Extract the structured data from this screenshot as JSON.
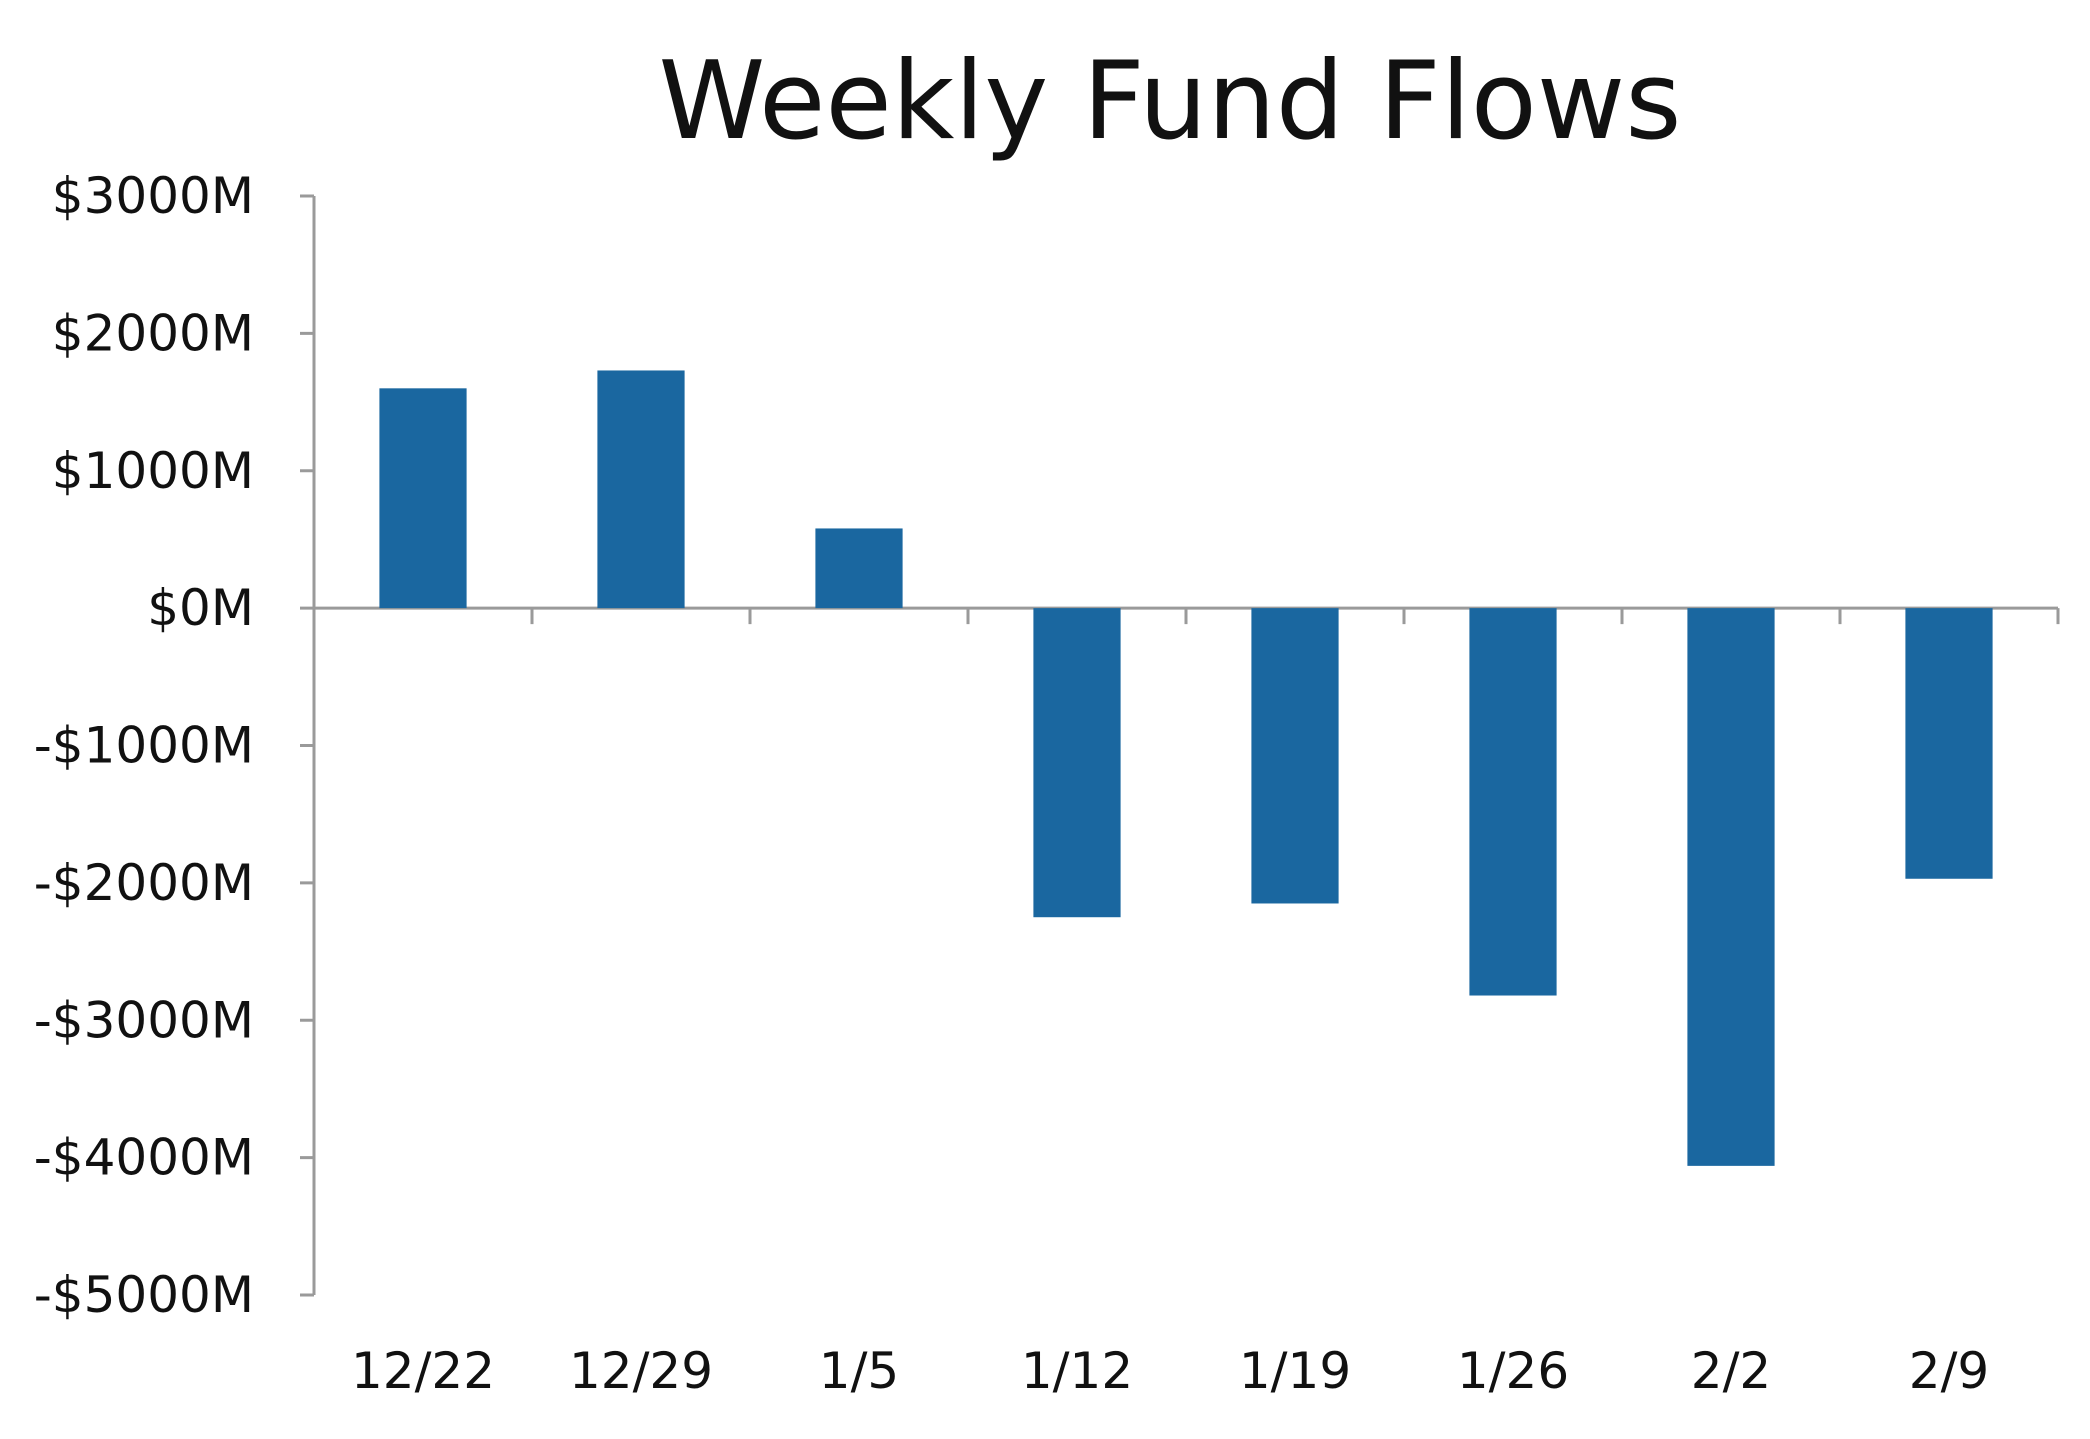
{
  "chart_data": {
    "type": "bar",
    "title": "Weekly Fund Flows",
    "xlabel": "",
    "ylabel": "",
    "categories": [
      "12/22",
      "12/29",
      "1/5",
      "1/12",
      "1/19",
      "1/26",
      "2/2",
      "2/9"
    ],
    "values": [
      1600,
      1730,
      580,
      -2250,
      -2150,
      -2820,
      -4060,
      -1970
    ],
    "ylim": [
      -5000,
      3000
    ],
    "yticks": [
      3000,
      2000,
      1000,
      0,
      -1000,
      -2000,
      -3000,
      -4000,
      -5000
    ],
    "ytick_labels": [
      "$3000M",
      "$2000M",
      "$1000M",
      "$0M",
      "-$1000M",
      "-$2000M",
      "-$3000M",
      "-$4000M",
      "-$5000M"
    ],
    "bar_color": "#1a67a0",
    "axis_color": "#9a9a9a",
    "grid": false,
    "legend": "none"
  }
}
